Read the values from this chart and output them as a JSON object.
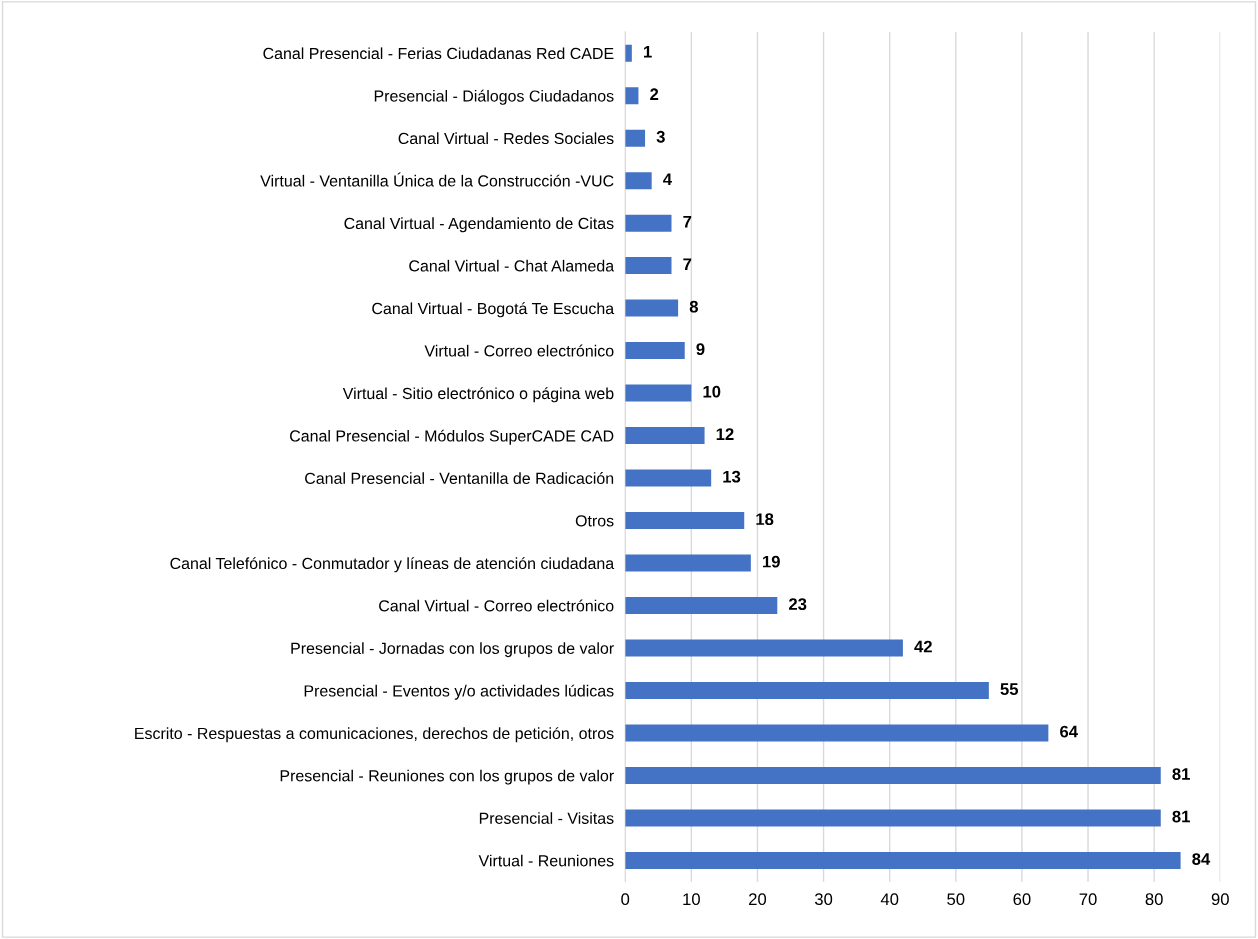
{
  "chart_data": {
    "type": "bar",
    "orientation": "horizontal",
    "categories": [
      "Canal Presencial - Ferias Ciudadanas Red CADE",
      "Presencial - Diálogos Ciudadanos",
      "Canal Virtual - Redes Sociales",
      "Virtual - Ventanilla Única de la Construcción -VUC",
      "Canal Virtual - Agendamiento de Citas",
      "Canal Virtual - Chat Alameda",
      "Canal Virtual - Bogotá Te Escucha",
      "Virtual - Correo electrónico",
      "Virtual - Sitio electrónico o página web",
      "Canal Presencial - Módulos SuperCADE CAD",
      "Canal Presencial - Ventanilla de Radicación",
      "Otros",
      "Canal Telefónico - Conmutador y líneas de atención ciudadana",
      "Canal Virtual - Correo electrónico",
      "Presencial - Jornadas con los grupos de valor",
      "Presencial - Eventos y/o actividades lúdicas",
      "Escrito - Respuestas a comunicaciones, derechos de petición, otros",
      "Presencial - Reuniones con los grupos de valor",
      "Presencial - Visitas",
      "Virtual - Reuniones"
    ],
    "values": [
      1,
      2,
      3,
      4,
      7,
      7,
      8,
      9,
      10,
      12,
      13,
      18,
      19,
      23,
      42,
      55,
      64,
      81,
      81,
      84
    ],
    "color": "#4472c4",
    "xlim": [
      0,
      90
    ],
    "xticks": [
      0,
      10,
      20,
      30,
      40,
      50,
      60,
      70,
      80,
      90
    ],
    "grid": "x",
    "data_labels": true
  }
}
